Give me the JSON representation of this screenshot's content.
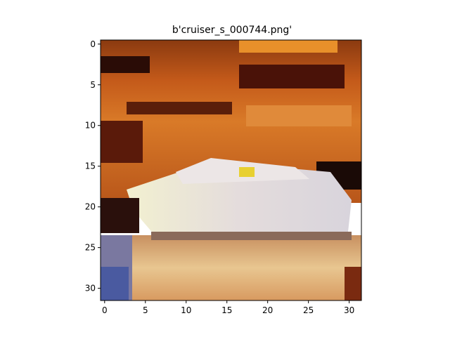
{
  "figure": {
    "title": "b'cruiser_s_000744.png'"
  },
  "image": {
    "description": "pixelated 32x32 photo of a cruiser boat on water",
    "grid_size": 32
  },
  "axes": {
    "xticks": [
      0,
      5,
      10,
      15,
      20,
      25,
      30
    ],
    "yticks": [
      0,
      5,
      10,
      15,
      20,
      25,
      30
    ]
  }
}
